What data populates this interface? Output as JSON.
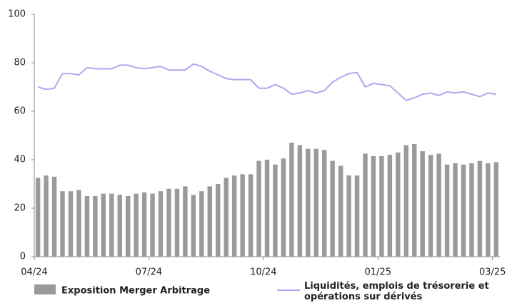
{
  "chart_data": {
    "type": "bar_line",
    "categories": [
      "04/24",
      null,
      null,
      null,
      null,
      null,
      null,
      null,
      null,
      null,
      null,
      null,
      null,
      null,
      "07/24",
      null,
      null,
      null,
      null,
      null,
      null,
      null,
      null,
      null,
      null,
      null,
      null,
      null,
      "10/24",
      null,
      null,
      null,
      null,
      null,
      null,
      null,
      null,
      null,
      null,
      null,
      null,
      null,
      "01/25",
      null,
      null,
      null,
      null,
      null,
      null,
      null,
      null,
      null,
      null,
      null,
      null,
      null,
      "03/25"
    ],
    "series": [
      {
        "name": "Exposition Merger Arbitrage",
        "kind": "bar",
        "color": "#9a9a9a",
        "values": [
          32.5,
          33.5,
          33,
          27,
          27,
          27.5,
          25,
          25,
          26,
          26,
          25.5,
          25,
          26,
          26.5,
          26,
          27,
          28,
          28,
          29,
          25.5,
          27,
          29,
          30,
          32.5,
          33.5,
          34,
          34,
          39.5,
          40,
          38,
          40.5,
          47,
          46,
          44.5,
          44.5,
          44,
          39.5,
          37.5,
          33.5,
          33.5,
          42.5,
          41.5,
          41.5,
          42,
          43,
          46,
          46.5,
          43.5,
          42,
          42.5,
          38,
          38.5,
          38,
          38.5,
          39.5,
          38.5,
          39
        ]
      },
      {
        "name": "Liquidités, emplois de trésorerie et opérations sur dérivés",
        "kind": "line",
        "color": "#aaaaf0",
        "values": [
          70,
          69,
          69.5,
          75.5,
          75.5,
          75,
          78,
          77.5,
          77.5,
          77.5,
          79,
          79,
          78,
          77.5,
          78,
          78.5,
          77,
          77,
          77,
          79.5,
          78.5,
          76.5,
          75,
          73.5,
          73,
          73,
          73,
          69.5,
          69.5,
          71,
          69.5,
          67,
          67.5,
          68.5,
          67.5,
          68.5,
          72,
          74,
          75.5,
          76,
          70,
          71.5,
          71,
          70.5,
          67.5,
          64.5,
          65.5,
          67,
          67.5,
          66.5,
          68,
          67.5,
          68,
          67,
          66,
          67.5,
          67
        ]
      }
    ],
    "ylim": [
      0,
      100
    ],
    "yticks": [
      0,
      20,
      40,
      60,
      80,
      100
    ],
    "grid": false
  }
}
